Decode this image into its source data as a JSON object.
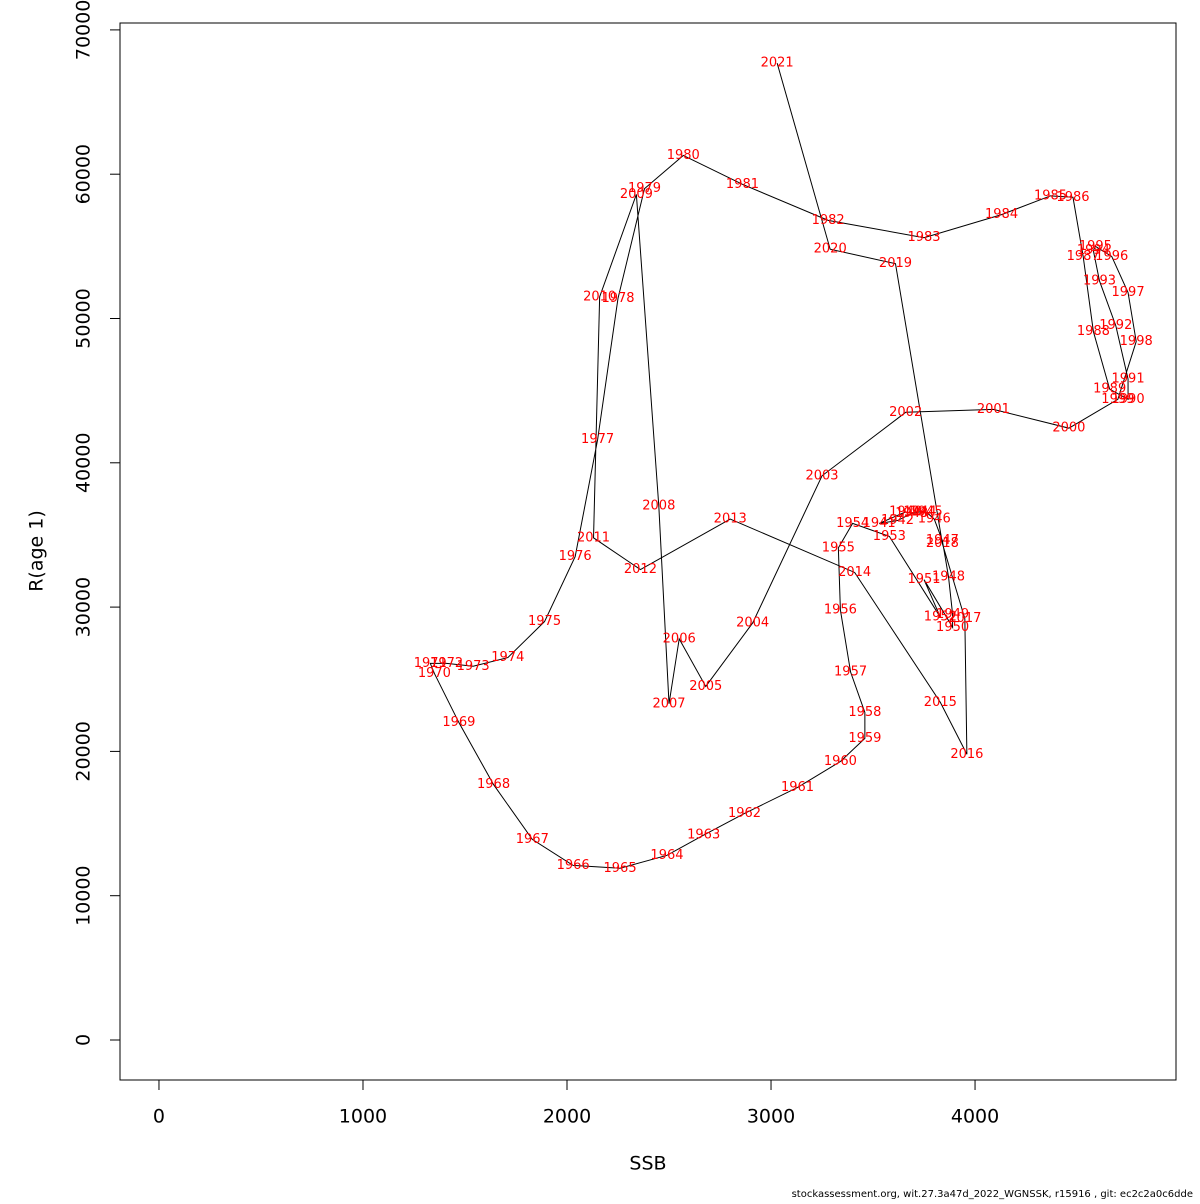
{
  "chart_data": {
    "type": "line",
    "x_label": "SSB",
    "y_label": "R(age 1)",
    "footer": "stockassessment.org, wit.27.3a47d_2022_WGNSSK, r15916 , git: ec2c2a0c6dde",
    "color": "#000000",
    "label_color": "#ff0000",
    "xlim": [
      -191,
      4985
    ],
    "ylim": [
      -2772,
      70478
    ],
    "xticks": [
      0,
      1000,
      2000,
      3000,
      4000
    ],
    "yticks": [
      0,
      10000,
      20000,
      30000,
      40000,
      50000,
      60000,
      70000
    ],
    "years": [
      1940,
      1941,
      1942,
      1943,
      1944,
      1945,
      1946,
      1947,
      1948,
      1949,
      1950,
      1951,
      1952,
      1953,
      1954,
      1955,
      1956,
      1957,
      1958,
      1959,
      1960,
      1961,
      1962,
      1963,
      1964,
      1965,
      1966,
      1967,
      1968,
      1969,
      1970,
      1971,
      1972,
      1973,
      1974,
      1975,
      1976,
      1977,
      1978,
      1979,
      1980,
      1981,
      1982,
      1983,
      1984,
      1985,
      1986,
      1987,
      1988,
      1989,
      1990,
      1991,
      1992,
      1993,
      1994,
      1995,
      1996,
      1997,
      1998,
      1999,
      2000,
      2001,
      2002,
      2003,
      2004,
      2005,
      2006,
      2007,
      2008,
      2009,
      2010,
      2011,
      2012,
      2013,
      2014,
      2015,
      2016,
      2017,
      2018,
      2019,
      2020,
      2021
    ],
    "x": [
      3660,
      3530,
      3620,
      3690,
      3730,
      3760,
      3800,
      3840,
      3870,
      3890,
      3890,
      3750,
      3830,
      3580,
      3400,
      3330,
      3340,
      3390,
      3460,
      3460,
      3340,
      3130,
      2870,
      2670,
      2490,
      2260,
      2030,
      1830,
      1640,
      1470,
      1350,
      1330,
      1410,
      1540,
      1710,
      1890,
      2040,
      2150,
      2250,
      2380,
      2570,
      2860,
      3280,
      3750,
      4130,
      4370,
      4480,
      4530,
      4580,
      4660,
      4750,
      4750,
      4690,
      4610,
      4580,
      4590,
      4670,
      4750,
      4790,
      4700,
      4460,
      4090,
      3660,
      3250,
      2910,
      2680,
      2550,
      2500,
      2450,
      2340,
      2160,
      2130,
      2360,
      2800,
      3410,
      3830,
      3960,
      3950,
      3840,
      3610,
      3290,
      3030
    ],
    "y": [
      36600,
      35800,
      36000,
      36500,
      36600,
      36600,
      36100,
      34600,
      32100,
      29500,
      28600,
      31900,
      29300,
      34900,
      35800,
      34100,
      29800,
      25500,
      22700,
      20900,
      19300,
      17500,
      15700,
      14200,
      12800,
      11900,
      12100,
      13900,
      17700,
      22000,
      25400,
      26100,
      26100,
      25900,
      26500,
      29000,
      33500,
      41600,
      51400,
      59000,
      61300,
      59300,
      56800,
      55600,
      57200,
      58500,
      58400,
      54300,
      49100,
      45100,
      44400,
      45800,
      49500,
      52600,
      54700,
      55000,
      54300,
      51800,
      48400,
      44400,
      42400,
      43700,
      43500,
      39100,
      28900,
      24500,
      27800,
      23300,
      37000,
      58600,
      51500,
      34800,
      32600,
      36100,
      32400,
      23400,
      19800,
      29200,
      34400,
      53800,
      54800,
      67700
    ]
  }
}
